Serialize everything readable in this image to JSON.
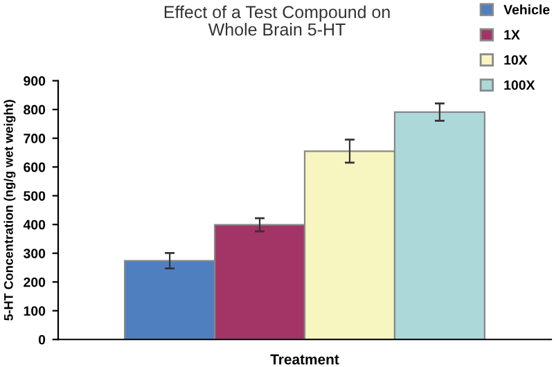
{
  "chart_data": {
    "type": "bar",
    "title": "Effect of a Test Compound on\nWhole Brain 5-HT",
    "xlabel": "Treatment",
    "ylabel": "5-HT Concentration (ng/g wet weight)",
    "categories": [
      null
    ],
    "series": [
      {
        "name": "Vehicle",
        "color": "#4f7fbf",
        "values": [
          274
        ],
        "errors": [
          27
        ]
      },
      {
        "name": "1X",
        "color": "#a33566",
        "values": [
          399
        ],
        "errors": [
          23
        ]
      },
      {
        "name": "10X",
        "color": "#f7f5c0",
        "values": [
          655
        ],
        "errors": [
          40
        ]
      },
      {
        "name": "100X",
        "color": "#acd8da",
        "values": [
          791
        ],
        "errors": [
          30
        ]
      }
    ],
    "ylim": [
      0,
      900
    ],
    "yticks": [
      0,
      100,
      200,
      300,
      400,
      500,
      600,
      700,
      800,
      900
    ],
    "grid": false,
    "legend": "top right"
  }
}
